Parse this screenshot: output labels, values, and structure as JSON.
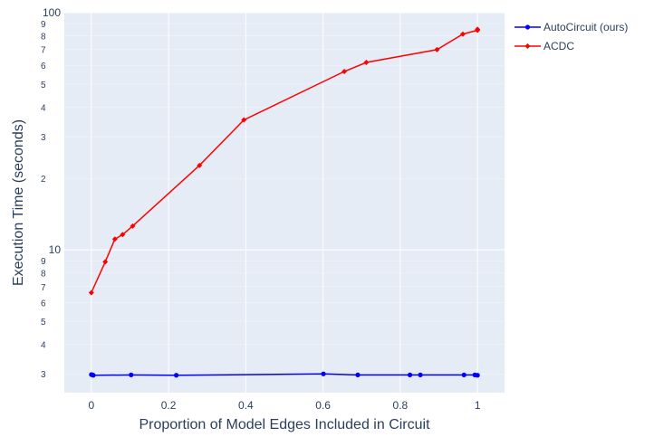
{
  "chart_data": {
    "type": "line",
    "xlabel": "Proportion of Model Edges Included in Circuit",
    "ylabel": "Execution Time (seconds)",
    "x_scale": "linear",
    "y_scale": "log",
    "xlim": [
      -0.07,
      1.07
    ],
    "ylim": [
      2.5,
      100
    ],
    "x_ticks": [
      0,
      0.2,
      0.4,
      0.6,
      0.8,
      1
    ],
    "x_tick_labels": [
      "0",
      "0.2",
      "0.4",
      "0.6",
      "0.8",
      "1"
    ],
    "y_major_ticks": [
      10,
      100
    ],
    "y_major_labels": [
      "10",
      "100"
    ],
    "y_minor_ticks": [
      3,
      4,
      5,
      6,
      7,
      8,
      9,
      20,
      30,
      40,
      50,
      60,
      70,
      80,
      90
    ],
    "y_minor_labels": [
      "3",
      "4",
      "5",
      "6",
      "7",
      "8",
      "9",
      "2",
      "3",
      "4",
      "5",
      "6",
      "7",
      "8",
      "9"
    ],
    "grid": true,
    "legend_position": "top-right, outside plot",
    "background": "#E5ECF6",
    "series": [
      {
        "name": "AutoCircuit (ours)",
        "color": "#0000ff",
        "x": [
          0,
          0.003,
          0.005,
          0.103,
          0.22,
          0.601,
          0.69,
          0.825,
          0.852,
          0.965,
          0.993,
          1.0
        ],
        "y": [
          2.98,
          2.97,
          2.96,
          2.97,
          2.96,
          3.0,
          2.97,
          2.97,
          2.97,
          2.97,
          2.97,
          2.96
        ]
      },
      {
        "name": "ACDC",
        "color": "#ff0000",
        "x": [
          0,
          0.036,
          0.061,
          0.081,
          0.107,
          0.28,
          0.395,
          0.655,
          0.712,
          0.895,
          0.962,
          1.0,
          1.0
        ],
        "y": [
          6.6,
          8.9,
          11.1,
          11.6,
          12.6,
          22.7,
          35.3,
          56.5,
          61.7,
          69.8,
          81.2,
          84.3,
          85.1
        ]
      }
    ]
  }
}
